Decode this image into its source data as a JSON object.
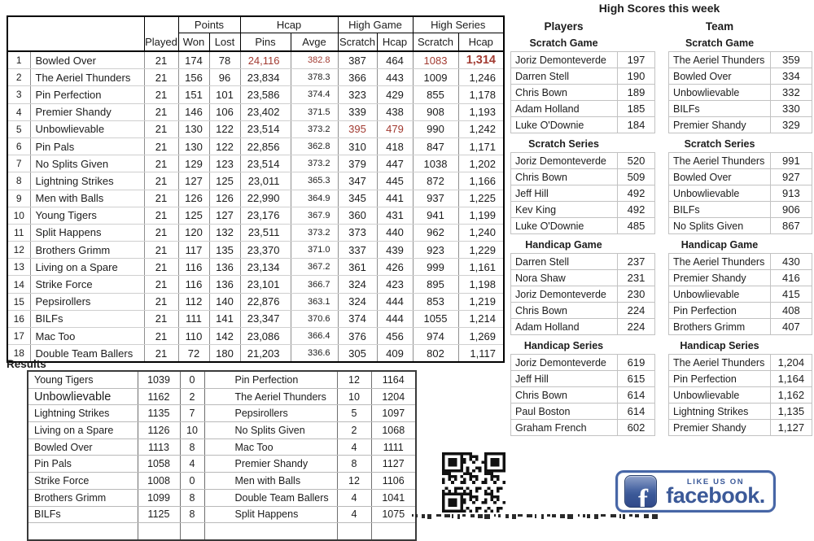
{
  "standings": {
    "group_headers": [
      "Points",
      "Hcap",
      "High Game",
      "High Series"
    ],
    "col_headers": [
      "Played",
      "Won",
      "Lost",
      "Pins",
      "Avge",
      "Scratch",
      "Hcap",
      "Scratch",
      "Hcap"
    ],
    "rows": [
      {
        "rank": "1",
        "team": "Bowled Over",
        "cells": [
          "21",
          "174",
          "78",
          "24,116",
          "382.8",
          "387",
          "464",
          "1083",
          "1,314"
        ],
        "red": [
          3,
          4,
          7,
          8
        ],
        "big": [
          8
        ]
      },
      {
        "rank": "2",
        "team": "The Aeriel Thunders",
        "cells": [
          "21",
          "156",
          "96",
          "23,834",
          "378.3",
          "366",
          "443",
          "1009",
          "1,246"
        ],
        "red": [],
        "big": []
      },
      {
        "rank": "3",
        "team": "Pin Perfection",
        "cells": [
          "21",
          "151",
          "101",
          "23,586",
          "374.4",
          "323",
          "429",
          "855",
          "1,178"
        ],
        "red": [],
        "big": []
      },
      {
        "rank": "4",
        "team": "Premier Shandy",
        "cells": [
          "21",
          "146",
          "106",
          "23,402",
          "371.5",
          "339",
          "438",
          "908",
          "1,193"
        ],
        "red": [],
        "big": []
      },
      {
        "rank": "5",
        "team": "Unbowlievable",
        "cells": [
          "21",
          "130",
          "122",
          "23,514",
          "373.2",
          "395",
          "479",
          "990",
          "1,242"
        ],
        "red": [
          5,
          6
        ],
        "big": []
      },
      {
        "rank": "6",
        "team": "Pin Pals",
        "cells": [
          "21",
          "130",
          "122",
          "22,856",
          "362.8",
          "310",
          "418",
          "847",
          "1,171"
        ],
        "red": [],
        "big": []
      },
      {
        "rank": "7",
        "team": "No Splits Given",
        "cells": [
          "21",
          "129",
          "123",
          "23,514",
          "373.2",
          "379",
          "447",
          "1038",
          "1,202"
        ],
        "red": [],
        "big": []
      },
      {
        "rank": "8",
        "team": "Lightning Strikes",
        "cells": [
          "21",
          "127",
          "125",
          "23,011",
          "365.3",
          "347",
          "445",
          "872",
          "1,166"
        ],
        "red": [],
        "big": []
      },
      {
        "rank": "9",
        "team": "Men with Balls",
        "cells": [
          "21",
          "126",
          "126",
          "22,990",
          "364.9",
          "345",
          "441",
          "937",
          "1,225"
        ],
        "red": [],
        "big": []
      },
      {
        "rank": "10",
        "team": "Young Tigers",
        "cells": [
          "21",
          "125",
          "127",
          "23,176",
          "367.9",
          "360",
          "431",
          "941",
          "1,199"
        ],
        "red": [],
        "big": []
      },
      {
        "rank": "11",
        "team": "Split Happens",
        "cells": [
          "21",
          "120",
          "132",
          "23,511",
          "373.2",
          "373",
          "440",
          "962",
          "1,240"
        ],
        "red": [],
        "big": []
      },
      {
        "rank": "12",
        "team": "Brothers Grimm",
        "cells": [
          "21",
          "117",
          "135",
          "23,370",
          "371.0",
          "337",
          "439",
          "923",
          "1,229"
        ],
        "red": [],
        "big": []
      },
      {
        "rank": "13",
        "team": "Living on a Spare",
        "cells": [
          "21",
          "116",
          "136",
          "23,134",
          "367.2",
          "361",
          "426",
          "999",
          "1,161"
        ],
        "red": [],
        "big": []
      },
      {
        "rank": "14",
        "team": "Strike Force",
        "cells": [
          "21",
          "116",
          "136",
          "23,101",
          "366.7",
          "324",
          "423",
          "895",
          "1,198"
        ],
        "red": [],
        "big": []
      },
      {
        "rank": "15",
        "team": "Pepsirollers",
        "cells": [
          "21",
          "112",
          "140",
          "22,876",
          "363.1",
          "324",
          "444",
          "853",
          "1,219"
        ],
        "red": [],
        "big": []
      },
      {
        "rank": "16",
        "team": "BILFs",
        "cells": [
          "21",
          "111",
          "141",
          "23,347",
          "370.6",
          "374",
          "444",
          "1055",
          "1,214"
        ],
        "red": [],
        "big": []
      },
      {
        "rank": "17",
        "team": "Mac Too",
        "cells": [
          "21",
          "110",
          "142",
          "23,086",
          "366.4",
          "376",
          "456",
          "974",
          "1,269"
        ],
        "red": [],
        "big": []
      },
      {
        "rank": "18",
        "team": "Double Team Ballers",
        "cells": [
          "21",
          "72",
          "180",
          "21,203",
          "336.6",
          "305",
          "409",
          "802",
          "1,117"
        ],
        "red": [],
        "big": []
      }
    ]
  },
  "high_scores": {
    "title": "High Scores this week",
    "players_label": "Players",
    "team_label": "Team",
    "sections": [
      {
        "header": "Scratch Game",
        "players": [
          [
            "Joriz Demonteverde",
            "197"
          ],
          [
            "Darren Stell",
            "190"
          ],
          [
            "Chris Bown",
            "189"
          ],
          [
            "Adam Holland",
            "185"
          ],
          [
            "Luke O'Downie",
            "184"
          ]
        ],
        "teams": [
          [
            "The Aeriel Thunders",
            "359"
          ],
          [
            "Bowled Over",
            "334"
          ],
          [
            "Unbowlievable",
            "332"
          ],
          [
            "BILFs",
            "330"
          ],
          [
            "Premier Shandy",
            "329"
          ]
        ]
      },
      {
        "header": "Scratch Series",
        "players": [
          [
            "Joriz Demonteverde",
            "520"
          ],
          [
            "Chris Bown",
            "509"
          ],
          [
            "Jeff Hill",
            "492"
          ],
          [
            "Kev King",
            "492"
          ],
          [
            "Luke O'Downie",
            "485"
          ]
        ],
        "teams": [
          [
            "The Aeriel Thunders",
            "991"
          ],
          [
            "Bowled Over",
            "927"
          ],
          [
            "Unbowlievable",
            "913"
          ],
          [
            "BILFs",
            "906"
          ],
          [
            "No Splits Given",
            "867"
          ]
        ]
      },
      {
        "header": "Handicap Game",
        "players": [
          [
            "Darren Stell",
            "237"
          ],
          [
            "Nora Shaw",
            "231"
          ],
          [
            "Joriz Demonteverde",
            "230"
          ],
          [
            "Chris Bown",
            "224"
          ],
          [
            "Adam Holland",
            "224"
          ]
        ],
        "teams": [
          [
            "The Aeriel Thunders",
            "430"
          ],
          [
            "Premier Shandy",
            "416"
          ],
          [
            "Unbowlievable",
            "415"
          ],
          [
            "Pin Perfection",
            "408"
          ],
          [
            "Brothers Grimm",
            "407"
          ]
        ]
      },
      {
        "header": "Handicap Series",
        "players": [
          [
            "Joriz Demonteverde",
            "619"
          ],
          [
            "Jeff Hill",
            "615"
          ],
          [
            "Chris Bown",
            "614"
          ],
          [
            "Paul Boston",
            "614"
          ],
          [
            "Graham French",
            "602"
          ]
        ],
        "teams": [
          [
            "The Aeriel Thunders",
            "1,204"
          ],
          [
            "Pin Perfection",
            "1,164"
          ],
          [
            "Unbowlievable",
            "1,162"
          ],
          [
            "Lightning Strikes",
            "1,135"
          ],
          [
            "Premier Shandy",
            "1,127"
          ]
        ]
      }
    ]
  },
  "results": {
    "label": "Results",
    "rows": [
      {
        "cells": [
          "Young Tigers",
          "1039",
          "0",
          "Pin Perfection",
          "12",
          "1164"
        ],
        "big_home": false
      },
      {
        "cells": [
          "Unbowlievable",
          "1162",
          "2",
          "The Aeriel Thunders",
          "10",
          "1204"
        ],
        "big_home": true
      },
      {
        "cells": [
          "Lightning Strikes",
          "1135",
          "7",
          "Pepsirollers",
          "5",
          "1097"
        ],
        "big_home": false
      },
      {
        "cells": [
          "Living on a Spare",
          "1126",
          "10",
          "No Splits Given",
          "2",
          "1068"
        ],
        "big_home": false
      },
      {
        "cells": [
          "Bowled Over",
          "1113",
          "8",
          "Mac Too",
          "4",
          "1111"
        ],
        "big_home": false
      },
      {
        "cells": [
          "Pin Pals",
          "1058",
          "4",
          "Premier Shandy",
          "8",
          "1127"
        ],
        "big_home": false
      },
      {
        "cells": [
          "Strike Force",
          "1008",
          "0",
          "Men with Balls",
          "12",
          "1106"
        ],
        "big_home": false
      },
      {
        "cells": [
          "Brothers Grimm",
          "1099",
          "8",
          "Double Team Ballers",
          "4",
          "1041"
        ],
        "big_home": false
      },
      {
        "cells": [
          "BILFs",
          "1125",
          "8",
          "Split Happens",
          "4",
          "1075"
        ],
        "big_home": false
      },
      {
        "cells": [
          "",
          "",
          "",
          "",
          "",
          ""
        ],
        "big_home": false
      }
    ]
  },
  "footer": {
    "facebook_tagline": "LIKE US ON",
    "facebook_brand": "facebook.",
    "facebook_letter": "f"
  },
  "colors": {
    "highlight_red": "#a23b32",
    "facebook_blue": "#3b5998"
  }
}
